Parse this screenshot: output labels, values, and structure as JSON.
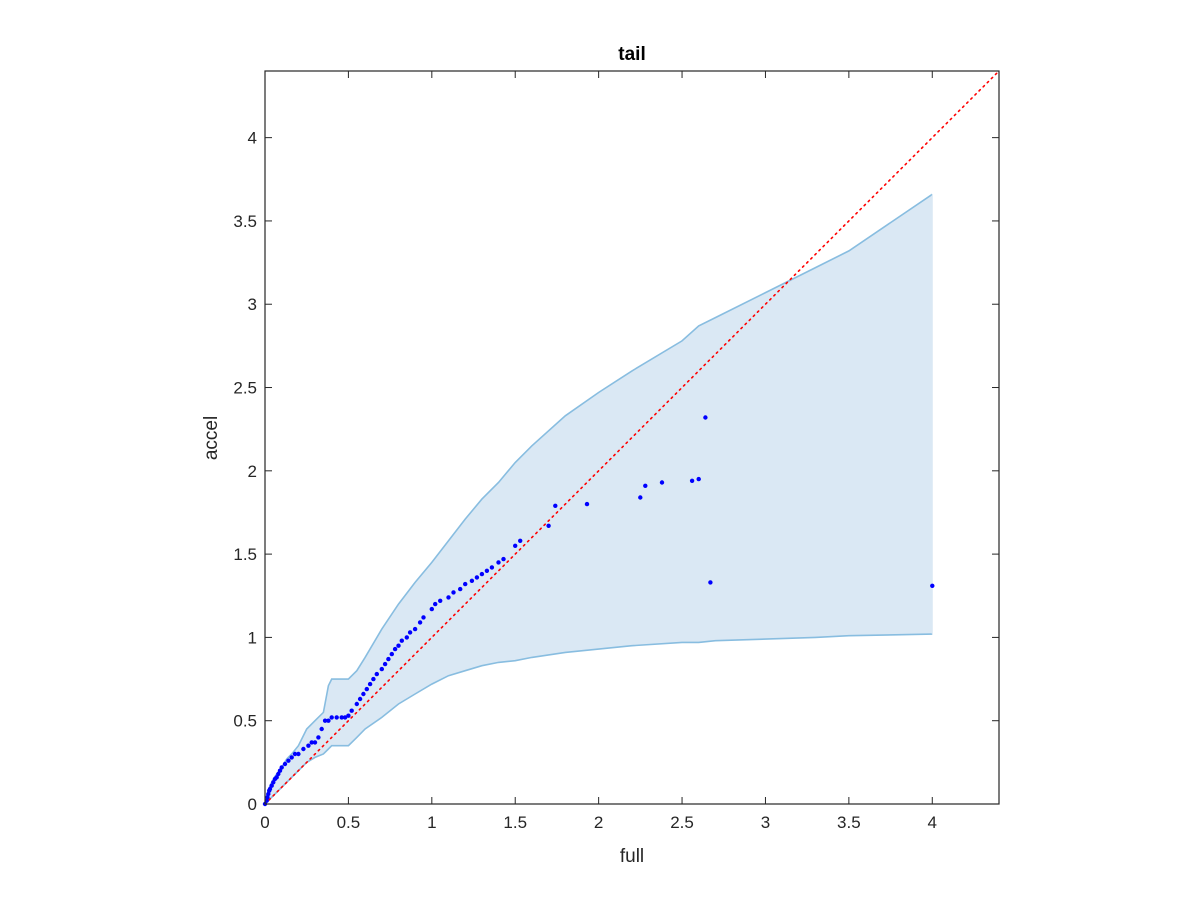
{
  "chart_data": {
    "type": "scatter",
    "title": "tail",
    "xlabel": "full",
    "ylabel": "accel",
    "xlim": [
      0,
      4.4
    ],
    "ylim": [
      0,
      4.4
    ],
    "grid": false,
    "box": true,
    "x_ticks": [
      0,
      0.5,
      1,
      1.5,
      2,
      2.5,
      3,
      3.5,
      4
    ],
    "x_tick_labels": [
      "0",
      "0.5",
      "1",
      "1.5",
      "2",
      "2.5",
      "3",
      "3.5",
      "4"
    ],
    "y_ticks": [
      0,
      0.5,
      1,
      1.5,
      2,
      2.5,
      3,
      3.5,
      4
    ],
    "y_tick_labels": [
      "0",
      "0.5",
      "1",
      "1.5",
      "2",
      "2.5",
      "3",
      "3.5",
      "4"
    ],
    "colors": {
      "points": "#0000ff",
      "reference_line": "#ff0000",
      "band_fill": "#dae8f4",
      "band_edge": "#88bde0",
      "axes": "#262626"
    },
    "reference_line": {
      "style": "dotted",
      "x": [
        0,
        4.4
      ],
      "y": [
        0,
        4.4
      ]
    },
    "band": {
      "x": [
        0,
        0.01,
        0.02,
        0.03,
        0.05,
        0.07,
        0.1,
        0.13,
        0.16,
        0.2,
        0.25,
        0.3,
        0.35,
        0.38,
        0.4,
        0.5,
        0.55,
        0.6,
        0.7,
        0.8,
        0.9,
        1.0,
        1.1,
        1.2,
        1.3,
        1.4,
        1.5,
        1.6,
        1.8,
        2.0,
        2.2,
        2.5,
        2.6,
        2.7,
        3.0,
        3.3,
        3.5,
        4.0
      ],
      "upper": [
        0,
        0.05,
        0.08,
        0.11,
        0.15,
        0.18,
        0.22,
        0.27,
        0.3,
        0.35,
        0.45,
        0.5,
        0.55,
        0.71,
        0.75,
        0.75,
        0.8,
        0.88,
        1.05,
        1.2,
        1.33,
        1.45,
        1.58,
        1.71,
        1.83,
        1.93,
        2.05,
        2.15,
        2.33,
        2.47,
        2.6,
        2.78,
        2.87,
        2.92,
        3.07,
        3.22,
        3.32,
        3.66
      ],
      "lower": [
        0,
        0.01,
        0.02,
        0.03,
        0.05,
        0.07,
        0.1,
        0.13,
        0.16,
        0.2,
        0.25,
        0.28,
        0.3,
        0.33,
        0.35,
        0.35,
        0.4,
        0.45,
        0.52,
        0.6,
        0.66,
        0.72,
        0.77,
        0.8,
        0.83,
        0.85,
        0.86,
        0.88,
        0.91,
        0.93,
        0.95,
        0.97,
        0.97,
        0.98,
        0.99,
        1.0,
        1.01,
        1.02
      ]
    },
    "points": {
      "x": [
        0,
        0.01,
        0.015,
        0.02,
        0.025,
        0.03,
        0.04,
        0.05,
        0.06,
        0.07,
        0.08,
        0.09,
        0.1,
        0.12,
        0.14,
        0.16,
        0.18,
        0.2,
        0.23,
        0.26,
        0.28,
        0.3,
        0.32,
        0.34,
        0.36,
        0.38,
        0.4,
        0.43,
        0.46,
        0.48,
        0.5,
        0.52,
        0.55,
        0.57,
        0.59,
        0.61,
        0.63,
        0.65,
        0.67,
        0.7,
        0.72,
        0.74,
        0.76,
        0.78,
        0.8,
        0.82,
        0.85,
        0.87,
        0.9,
        0.93,
        0.95,
        1.0,
        1.02,
        1.05,
        1.1,
        1.13,
        1.17,
        1.2,
        1.24,
        1.27,
        1.3,
        1.33,
        1.36,
        1.4,
        1.43,
        1.5,
        1.53,
        1.7,
        1.74,
        1.93,
        2.25,
        2.28,
        2.38,
        2.56,
        2.6,
        2.64,
        2.67,
        4.0
      ],
      "y": [
        0,
        0.02,
        0.04,
        0.06,
        0.08,
        0.09,
        0.11,
        0.13,
        0.15,
        0.16,
        0.18,
        0.2,
        0.22,
        0.24,
        0.26,
        0.28,
        0.3,
        0.3,
        0.33,
        0.35,
        0.37,
        0.37,
        0.4,
        0.45,
        0.5,
        0.5,
        0.52,
        0.52,
        0.52,
        0.52,
        0.53,
        0.56,
        0.6,
        0.63,
        0.66,
        0.69,
        0.72,
        0.75,
        0.78,
        0.81,
        0.84,
        0.87,
        0.9,
        0.93,
        0.95,
        0.98,
        1.0,
        1.03,
        1.05,
        1.09,
        1.12,
        1.17,
        1.2,
        1.22,
        1.24,
        1.27,
        1.29,
        1.32,
        1.34,
        1.36,
        1.38,
        1.4,
        1.42,
        1.45,
        1.47,
        1.55,
        1.58,
        1.67,
        1.79,
        1.8,
        1.84,
        1.91,
        1.93,
        1.94,
        1.95,
        2.32,
        1.33,
        1.31
      ]
    }
  }
}
